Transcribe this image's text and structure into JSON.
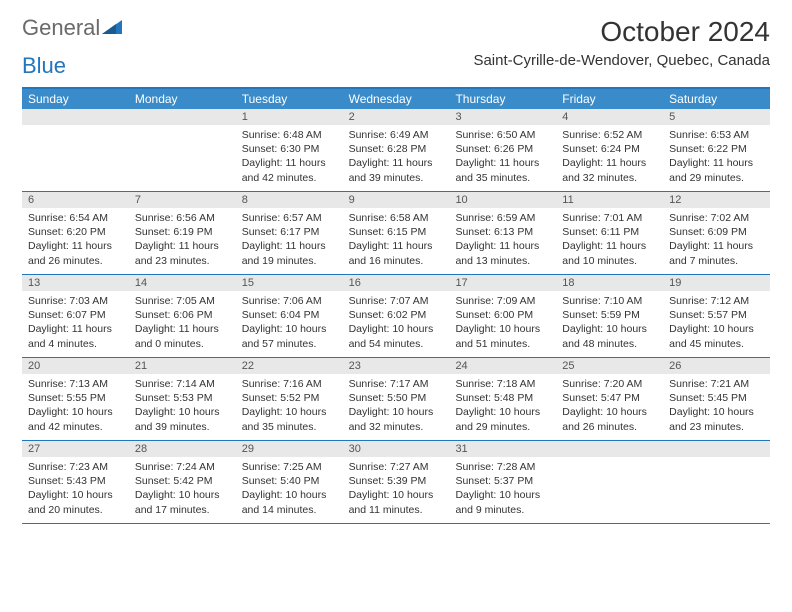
{
  "logo": {
    "text_a": "General",
    "text_b": "Blue"
  },
  "title": "October 2024",
  "location": "Saint-Cyrille-de-Wendover, Quebec, Canada",
  "colors": {
    "header_blue": "#3a8bc9",
    "rule_blue": "#2176bd",
    "daynum_bg": "#e8e8e8",
    "text": "#333333",
    "logo_gray": "#6a6a6a"
  },
  "days_of_week": [
    "Sunday",
    "Monday",
    "Tuesday",
    "Wednesday",
    "Thursday",
    "Friday",
    "Saturday"
  ],
  "weeks": [
    [
      null,
      null,
      {
        "n": "1",
        "sr": "Sunrise: 6:48 AM",
        "ss": "Sunset: 6:30 PM",
        "dl": "Daylight: 11 hours and 42 minutes."
      },
      {
        "n": "2",
        "sr": "Sunrise: 6:49 AM",
        "ss": "Sunset: 6:28 PM",
        "dl": "Daylight: 11 hours and 39 minutes."
      },
      {
        "n": "3",
        "sr": "Sunrise: 6:50 AM",
        "ss": "Sunset: 6:26 PM",
        "dl": "Daylight: 11 hours and 35 minutes."
      },
      {
        "n": "4",
        "sr": "Sunrise: 6:52 AM",
        "ss": "Sunset: 6:24 PM",
        "dl": "Daylight: 11 hours and 32 minutes."
      },
      {
        "n": "5",
        "sr": "Sunrise: 6:53 AM",
        "ss": "Sunset: 6:22 PM",
        "dl": "Daylight: 11 hours and 29 minutes."
      }
    ],
    [
      {
        "n": "6",
        "sr": "Sunrise: 6:54 AM",
        "ss": "Sunset: 6:20 PM",
        "dl": "Daylight: 11 hours and 26 minutes."
      },
      {
        "n": "7",
        "sr": "Sunrise: 6:56 AM",
        "ss": "Sunset: 6:19 PM",
        "dl": "Daylight: 11 hours and 23 minutes."
      },
      {
        "n": "8",
        "sr": "Sunrise: 6:57 AM",
        "ss": "Sunset: 6:17 PM",
        "dl": "Daylight: 11 hours and 19 minutes."
      },
      {
        "n": "9",
        "sr": "Sunrise: 6:58 AM",
        "ss": "Sunset: 6:15 PM",
        "dl": "Daylight: 11 hours and 16 minutes."
      },
      {
        "n": "10",
        "sr": "Sunrise: 6:59 AM",
        "ss": "Sunset: 6:13 PM",
        "dl": "Daylight: 11 hours and 13 minutes."
      },
      {
        "n": "11",
        "sr": "Sunrise: 7:01 AM",
        "ss": "Sunset: 6:11 PM",
        "dl": "Daylight: 11 hours and 10 minutes."
      },
      {
        "n": "12",
        "sr": "Sunrise: 7:02 AM",
        "ss": "Sunset: 6:09 PM",
        "dl": "Daylight: 11 hours and 7 minutes."
      }
    ],
    [
      {
        "n": "13",
        "sr": "Sunrise: 7:03 AM",
        "ss": "Sunset: 6:07 PM",
        "dl": "Daylight: 11 hours and 4 minutes."
      },
      {
        "n": "14",
        "sr": "Sunrise: 7:05 AM",
        "ss": "Sunset: 6:06 PM",
        "dl": "Daylight: 11 hours and 0 minutes."
      },
      {
        "n": "15",
        "sr": "Sunrise: 7:06 AM",
        "ss": "Sunset: 6:04 PM",
        "dl": "Daylight: 10 hours and 57 minutes."
      },
      {
        "n": "16",
        "sr": "Sunrise: 7:07 AM",
        "ss": "Sunset: 6:02 PM",
        "dl": "Daylight: 10 hours and 54 minutes."
      },
      {
        "n": "17",
        "sr": "Sunrise: 7:09 AM",
        "ss": "Sunset: 6:00 PM",
        "dl": "Daylight: 10 hours and 51 minutes."
      },
      {
        "n": "18",
        "sr": "Sunrise: 7:10 AM",
        "ss": "Sunset: 5:59 PM",
        "dl": "Daylight: 10 hours and 48 minutes."
      },
      {
        "n": "19",
        "sr": "Sunrise: 7:12 AM",
        "ss": "Sunset: 5:57 PM",
        "dl": "Daylight: 10 hours and 45 minutes."
      }
    ],
    [
      {
        "n": "20",
        "sr": "Sunrise: 7:13 AM",
        "ss": "Sunset: 5:55 PM",
        "dl": "Daylight: 10 hours and 42 minutes."
      },
      {
        "n": "21",
        "sr": "Sunrise: 7:14 AM",
        "ss": "Sunset: 5:53 PM",
        "dl": "Daylight: 10 hours and 39 minutes."
      },
      {
        "n": "22",
        "sr": "Sunrise: 7:16 AM",
        "ss": "Sunset: 5:52 PM",
        "dl": "Daylight: 10 hours and 35 minutes."
      },
      {
        "n": "23",
        "sr": "Sunrise: 7:17 AM",
        "ss": "Sunset: 5:50 PM",
        "dl": "Daylight: 10 hours and 32 minutes."
      },
      {
        "n": "24",
        "sr": "Sunrise: 7:18 AM",
        "ss": "Sunset: 5:48 PM",
        "dl": "Daylight: 10 hours and 29 minutes."
      },
      {
        "n": "25",
        "sr": "Sunrise: 7:20 AM",
        "ss": "Sunset: 5:47 PM",
        "dl": "Daylight: 10 hours and 26 minutes."
      },
      {
        "n": "26",
        "sr": "Sunrise: 7:21 AM",
        "ss": "Sunset: 5:45 PM",
        "dl": "Daylight: 10 hours and 23 minutes."
      }
    ],
    [
      {
        "n": "27",
        "sr": "Sunrise: 7:23 AM",
        "ss": "Sunset: 5:43 PM",
        "dl": "Daylight: 10 hours and 20 minutes."
      },
      {
        "n": "28",
        "sr": "Sunrise: 7:24 AM",
        "ss": "Sunset: 5:42 PM",
        "dl": "Daylight: 10 hours and 17 minutes."
      },
      {
        "n": "29",
        "sr": "Sunrise: 7:25 AM",
        "ss": "Sunset: 5:40 PM",
        "dl": "Daylight: 10 hours and 14 minutes."
      },
      {
        "n": "30",
        "sr": "Sunrise: 7:27 AM",
        "ss": "Sunset: 5:39 PM",
        "dl": "Daylight: 10 hours and 11 minutes."
      },
      {
        "n": "31",
        "sr": "Sunrise: 7:28 AM",
        "ss": "Sunset: 5:37 PM",
        "dl": "Daylight: 10 hours and 9 minutes."
      },
      null,
      null
    ]
  ]
}
